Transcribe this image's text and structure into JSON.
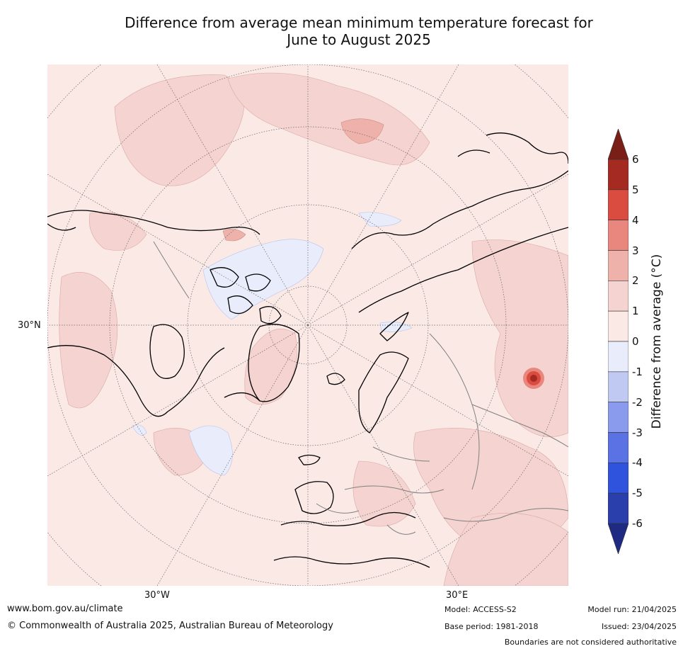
{
  "title": {
    "line1": "Difference from average mean minimum temperature forecast for",
    "line2": "June to August 2025"
  },
  "map": {
    "projection": "north-polar-stereographic",
    "longitude_labels": [
      "30°W",
      "30°E"
    ],
    "latitude_labels": [
      "30°N"
    ]
  },
  "colorbar": {
    "label": "Difference from average (°C)",
    "ticks": [
      "6",
      "5",
      "4",
      "3",
      "2",
      "1",
      "0",
      "-1",
      "-2",
      "-3",
      "-4",
      "-5",
      "-6"
    ],
    "colors": [
      "#7a1f17",
      "#a52a22",
      "#d94c3f",
      "#e9867d",
      "#eeb2ab",
      "#f4d3d0",
      "#fbe9e6",
      "#e8ecfb",
      "#c0c9f1",
      "#8a9aec",
      "#5b72e4",
      "#2f53dc",
      "#2a3eac",
      "#1f2a82"
    ]
  },
  "footer": {
    "url": "www.bom.gov.au/climate",
    "copyright": "© Commonwealth of Australia 2025, Australian Bureau of Meteorology",
    "model": "Model: ACCESS-S2",
    "base_period": "Base period: 1981-2018",
    "model_run": "Model run: 21/04/2025",
    "issued": "Issued: 23/04/2025",
    "disclaimer": "Boundaries are not considered authoritative"
  }
}
